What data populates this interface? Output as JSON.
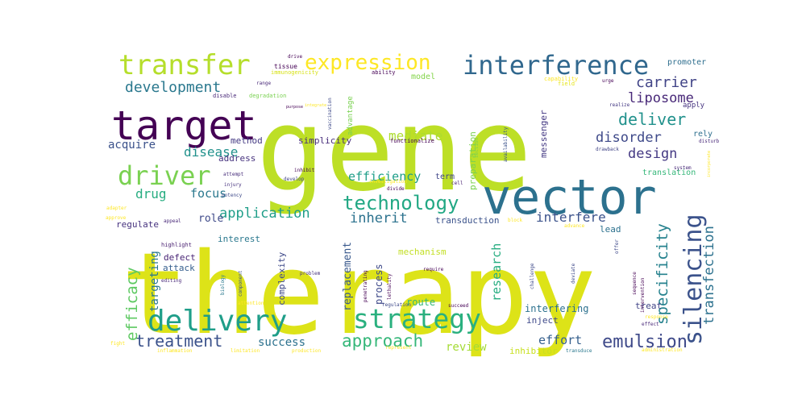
{
  "words": [
    {
      "text": "gene",
      "color": "#bddf26"
    },
    {
      "text": "therapy",
      "color": "#dde318"
    },
    {
      "text": "vector",
      "color": "#2c718e"
    },
    {
      "text": "target",
      "color": "#440154"
    },
    {
      "text": "transfer",
      "color": "#b5de2b"
    },
    {
      "text": "expression",
      "color": "#fde725"
    },
    {
      "text": "interference",
      "color": "#31688e"
    },
    {
      "text": "delivery",
      "color": "#1f9e89"
    },
    {
      "text": "strategy",
      "color": "#2ab07f"
    },
    {
      "text": "silencing",
      "color": "#3b528b"
    },
    {
      "text": "driver",
      "color": "#7ad151"
    },
    {
      "text": "technology",
      "color": "#22a884"
    },
    {
      "text": "approach",
      "color": "#35b779"
    },
    {
      "text": "emulsion",
      "color": "#3e4989"
    },
    {
      "text": "treatment",
      "color": "#3b528b"
    },
    {
      "text": "development",
      "color": "#2a788e"
    },
    {
      "text": "deliver",
      "color": "#21918c"
    },
    {
      "text": "carrier",
      "color": "#414487"
    },
    {
      "text": "liposome",
      "color": "#482878"
    },
    {
      "text": "disorder",
      "color": "#3e4989"
    },
    {
      "text": "design",
      "color": "#443983"
    },
    {
      "text": "efficacy",
      "color": "#5ec962"
    },
    {
      "text": "specificity",
      "color": "#26828e"
    },
    {
      "text": "transfection",
      "color": "#2c718e"
    },
    {
      "text": "application",
      "color": "#1f9e89"
    },
    {
      "text": "inherit",
      "color": "#2c728e"
    },
    {
      "text": "interfere",
      "color": "#3b528b"
    },
    {
      "text": "disease",
      "color": "#21918c"
    },
    {
      "text": "acquire",
      "color": "#3b528b"
    },
    {
      "text": "mediate",
      "color": "#addc30"
    },
    {
      "text": "drug",
      "color": "#27ad81"
    },
    {
      "text": "focus",
      "color": "#2a788e"
    },
    {
      "text": "efficiency",
      "color": "#1f9e89"
    },
    {
      "text": "research",
      "color": "#27ad81"
    },
    {
      "text": "targeting",
      "color": "#2a788e"
    },
    {
      "text": "success",
      "color": "#2c718e"
    },
    {
      "text": "effort",
      "color": "#355f8d"
    },
    {
      "text": "review",
      "color": "#a5db36"
    },
    {
      "text": "role",
      "color": "#3e4989"
    },
    {
      "text": "interest",
      "color": "#2a788e"
    },
    {
      "text": "mechanism",
      "color": "#c2df23"
    },
    {
      "text": "replacement",
      "color": "#38588c"
    },
    {
      "text": "process",
      "color": "#3e4989"
    },
    {
      "text": "route",
      "color": "#35b779"
    },
    {
      "text": "complexity",
      "color": "#3e4989"
    },
    {
      "text": "transduction",
      "color": "#3b528b"
    },
    {
      "text": "lead",
      "color": "#2c718e"
    },
    {
      "text": "interfering",
      "color": "#2c718e"
    },
    {
      "text": "inject",
      "color": "#3e4989"
    },
    {
      "text": "inhibitor",
      "color": "#c8e020"
    },
    {
      "text": "treat",
      "color": "#414487"
    },
    {
      "text": "simplicity",
      "color": "#472d7b"
    },
    {
      "text": "method",
      "color": "#443983"
    },
    {
      "text": "address",
      "color": "#46327e"
    },
    {
      "text": "regulate",
      "color": "#46327e"
    },
    {
      "text": "attack",
      "color": "#355f8d"
    },
    {
      "text": "defect",
      "color": "#482475"
    },
    {
      "text": "preparation",
      "color": "#7ad151"
    },
    {
      "text": "messenger",
      "color": "#443983"
    },
    {
      "text": "term",
      "color": "#404688"
    },
    {
      "text": "rely",
      "color": "#2e6f8e"
    },
    {
      "text": "translation",
      "color": "#35b779"
    },
    {
      "text": "promoter",
      "color": "#2e6e8e"
    },
    {
      "text": "apply",
      "color": "#46337f"
    },
    {
      "text": "model",
      "color": "#84d44b"
    },
    {
      "text": "advantage",
      "color": "#7ad151"
    },
    {
      "text": "tissue",
      "color": "#440154"
    },
    {
      "text": "drive",
      "color": "#440154"
    },
    {
      "text": "ability",
      "color": "#440154"
    },
    {
      "text": "capability",
      "color": "#fde725"
    },
    {
      "text": "field",
      "color": "#e5e419"
    },
    {
      "text": "urge",
      "color": "#440154"
    },
    {
      "text": "realize",
      "color": "#443983"
    },
    {
      "text": "degradation",
      "color": "#7ad151"
    },
    {
      "text": "disable",
      "color": "#482878"
    },
    {
      "text": "range",
      "color": "#482878"
    },
    {
      "text": "immunogenicity",
      "color": "#d8e219"
    },
    {
      "text": "vaccination",
      "color": "#3e4989"
    },
    {
      "text": "functionalize",
      "color": "#440154"
    },
    {
      "text": "section",
      "color": "#7ad151"
    },
    {
      "text": "availability",
      "color": "#3b528b"
    },
    {
      "text": "drawback",
      "color": "#414487"
    },
    {
      "text": "disturb",
      "color": "#482878"
    },
    {
      "text": "system",
      "color": "#482878"
    },
    {
      "text": "inhibit",
      "color": "#440154"
    },
    {
      "text": "develop",
      "color": "#414487"
    },
    {
      "text": "investigation",
      "color": "#fde725"
    },
    {
      "text": "cell",
      "color": "#481f70"
    },
    {
      "text": "divide",
      "color": "#440154"
    },
    {
      "text": "attempt",
      "color": "#472d7b"
    },
    {
      "text": "injury",
      "color": "#46327e"
    },
    {
      "text": "potency",
      "color": "#3e4989"
    },
    {
      "text": "adapter",
      "color": "#fde725"
    },
    {
      "text": "approve",
      "color": "#fde725"
    },
    {
      "text": "appeal",
      "color": "#482878"
    },
    {
      "text": "highlight",
      "color": "#481f70"
    },
    {
      "text": "editing",
      "color": "#482878"
    },
    {
      "text": "biology",
      "color": "#2a788e"
    },
    {
      "text": "component",
      "color": "#3b528b"
    },
    {
      "text": "penetrating",
      "color": "#440154"
    },
    {
      "text": "lethality",
      "color": "#440154"
    },
    {
      "text": "problem",
      "color": "#46327e"
    },
    {
      "text": "require",
      "color": "#440154"
    },
    {
      "text": "challenge",
      "color": "#3e4989"
    },
    {
      "text": "deviate",
      "color": "#3e4989"
    },
    {
      "text": "regulation",
      "color": "#3e4989"
    },
    {
      "text": "succeed",
      "color": "#440154"
    },
    {
      "text": "attention",
      "color": "#fde725"
    },
    {
      "text": "fight",
      "color": "#fde725"
    },
    {
      "text": "inflammation",
      "color": "#fde725"
    },
    {
      "text": "limitation",
      "color": "#fde725"
    },
    {
      "text": "production",
      "color": "#fde725"
    },
    {
      "text": "represent",
      "color": "#fde725"
    },
    {
      "text": "transduce",
      "color": "#2a788e"
    },
    {
      "text": "administration",
      "color": "#fde725"
    },
    {
      "text": "effect",
      "color": "#482878"
    },
    {
      "text": "advance",
      "color": "#fde725"
    },
    {
      "text": "offer",
      "color": "#3e4989"
    },
    {
      "text": "sequence",
      "color": "#440154"
    },
    {
      "text": "intervention",
      "color": "#440154"
    },
    {
      "text": "block",
      "color": "#fde725"
    },
    {
      "text": "incorporate",
      "color": "#fde725"
    },
    {
      "text": "integrate",
      "color": "#fde725"
    },
    {
      "text": "response",
      "color": "#fde725"
    },
    {
      "text": "purpose",
      "color": "#440154"
    }
  ]
}
